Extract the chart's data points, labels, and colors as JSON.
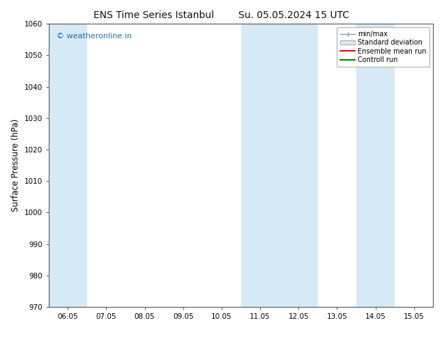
{
  "title_left": "ENS Time Series Istanbul",
  "title_right": "Su. 05.05.2024 15 UTC",
  "ylabel": "Surface Pressure (hPa)",
  "ylim": [
    970,
    1060
  ],
  "yticks": [
    970,
    980,
    990,
    1000,
    1010,
    1020,
    1030,
    1040,
    1050,
    1060
  ],
  "xtick_labels": [
    "06.05",
    "07.05",
    "08.05",
    "09.05",
    "10.05",
    "11.05",
    "12.05",
    "13.05",
    "14.05",
    "15.05"
  ],
  "num_xticks": 10,
  "shaded_bands": [
    {
      "xmin": 0,
      "xmax": 1,
      "color": "#d6eaf5"
    },
    {
      "xmin": 5,
      "xmax": 7,
      "color": "#d6eaf5"
    },
    {
      "xmin": 8,
      "xmax": 9,
      "color": "#d6eaf5"
    }
  ],
  "watermark_text": "© weatheronline.in",
  "watermark_color": "#1e6eb4",
  "legend_labels": [
    "min/max",
    "Standard deviation",
    "Ensemble mean run",
    "Controll run"
  ],
  "legend_colors": [
    "#aaaaaa",
    "#cccccc",
    "#ff0000",
    "#008000"
  ],
  "bg_color": "#ffffff",
  "spine_color": "#555555",
  "tick_color": "#333333"
}
